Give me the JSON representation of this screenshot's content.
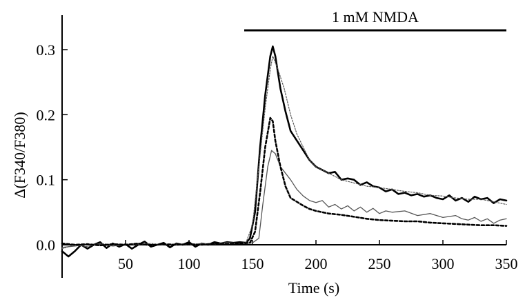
{
  "chart_data": {
    "type": "line",
    "title": "",
    "xlabel": "Time (s)",
    "ylabel": "Δ(F340/F380)",
    "xlim": [
      0,
      350
    ],
    "ylim": [
      -0.05,
      0.35
    ],
    "x_ticks": [
      50,
      100,
      150,
      200,
      250,
      300,
      350
    ],
    "x_tick_labels": [
      "50",
      "100",
      "150",
      "200",
      "250",
      "300",
      "350"
    ],
    "y_ticks": [
      0.0,
      0.1,
      0.2,
      0.3
    ],
    "y_tick_labels": [
      "0.0",
      "0.1",
      "0.2",
      "0.3"
    ],
    "grid": false,
    "legend": "none",
    "annotation": {
      "text": "1 mM NMDA",
      "x_start": 150,
      "x_end": 350
    },
    "series": [
      {
        "style": "thick-solid",
        "color": "#000000",
        "points": [
          [
            0,
            -0.01
          ],
          [
            5,
            -0.018
          ],
          [
            10,
            -0.01
          ],
          [
            15,
            0.0
          ],
          [
            20,
            -0.006
          ],
          [
            25,
            0.0
          ],
          [
            30,
            0.004
          ],
          [
            35,
            -0.005
          ],
          [
            40,
            0.002
          ],
          [
            45,
            -0.003
          ],
          [
            50,
            0.001
          ],
          [
            55,
            -0.006
          ],
          [
            60,
            0.0
          ],
          [
            65,
            0.005
          ],
          [
            70,
            -0.003
          ],
          [
            75,
            0.0
          ],
          [
            80,
            0.003
          ],
          [
            85,
            -0.004
          ],
          [
            90,
            0.002
          ],
          [
            95,
            0.0
          ],
          [
            100,
            0.004
          ],
          [
            105,
            -0.003
          ],
          [
            110,
            0.002
          ],
          [
            115,
            0.0
          ],
          [
            120,
            0.004
          ],
          [
            125,
            0.002
          ],
          [
            130,
            0.004
          ],
          [
            135,
            0.003
          ],
          [
            140,
            0.004
          ],
          [
            145,
            0.003
          ],
          [
            148,
            0.01
          ],
          [
            152,
            0.05
          ],
          [
            156,
            0.15
          ],
          [
            160,
            0.23
          ],
          [
            164,
            0.29
          ],
          [
            166,
            0.305
          ],
          [
            168,
            0.29
          ],
          [
            172,
            0.24
          ],
          [
            176,
            0.205
          ],
          [
            180,
            0.175
          ],
          [
            185,
            0.16
          ],
          [
            190,
            0.145
          ],
          [
            195,
            0.13
          ],
          [
            200,
            0.12
          ],
          [
            205,
            0.115
          ],
          [
            210,
            0.11
          ],
          [
            215,
            0.112
          ],
          [
            220,
            0.1
          ],
          [
            225,
            0.102
          ],
          [
            230,
            0.1
          ],
          [
            235,
            0.092
          ],
          [
            240,
            0.096
          ],
          [
            245,
            0.09
          ],
          [
            250,
            0.088
          ],
          [
            255,
            0.082
          ],
          [
            260,
            0.085
          ],
          [
            265,
            0.078
          ],
          [
            270,
            0.08
          ],
          [
            275,
            0.076
          ],
          [
            280,
            0.078
          ],
          [
            285,
            0.074
          ],
          [
            290,
            0.076
          ],
          [
            295,
            0.072
          ],
          [
            300,
            0.07
          ],
          [
            305,
            0.076
          ],
          [
            310,
            0.068
          ],
          [
            315,
            0.072
          ],
          [
            320,
            0.066
          ],
          [
            325,
            0.074
          ],
          [
            330,
            0.07
          ],
          [
            335,
            0.072
          ],
          [
            340,
            0.064
          ],
          [
            345,
            0.07
          ],
          [
            350,
            0.068
          ]
        ]
      },
      {
        "style": "thin-dotted",
        "color": "#555555",
        "points": [
          [
            0,
            -0.006
          ],
          [
            10,
            0.0
          ],
          [
            20,
            -0.003
          ],
          [
            30,
            0.002
          ],
          [
            40,
            0.0
          ],
          [
            50,
            0.001
          ],
          [
            60,
            0.0
          ],
          [
            70,
            0.002
          ],
          [
            80,
            0.0
          ],
          [
            90,
            0.001
          ],
          [
            100,
            0.0
          ],
          [
            110,
            0.002
          ],
          [
            120,
            0.001
          ],
          [
            130,
            0.003
          ],
          [
            140,
            0.002
          ],
          [
            145,
            0.004
          ],
          [
            150,
            0.03
          ],
          [
            155,
            0.12
          ],
          [
            160,
            0.21
          ],
          [
            164,
            0.27
          ],
          [
            166,
            0.29
          ],
          [
            170,
            0.27
          ],
          [
            175,
            0.24
          ],
          [
            180,
            0.2
          ],
          [
            185,
            0.17
          ],
          [
            190,
            0.15
          ],
          [
            195,
            0.13
          ],
          [
            200,
            0.12
          ],
          [
            210,
            0.11
          ],
          [
            220,
            0.1
          ],
          [
            230,
            0.095
          ],
          [
            240,
            0.09
          ],
          [
            250,
            0.088
          ],
          [
            260,
            0.085
          ],
          [
            270,
            0.082
          ],
          [
            280,
            0.08
          ],
          [
            290,
            0.076
          ],
          [
            300,
            0.075
          ],
          [
            310,
            0.072
          ],
          [
            320,
            0.07
          ],
          [
            330,
            0.07
          ],
          [
            340,
            0.066
          ],
          [
            350,
            0.062
          ]
        ]
      },
      {
        "style": "thin-solid",
        "color": "#555555",
        "points": [
          [
            0,
            -0.004
          ],
          [
            10,
            -0.002
          ],
          [
            20,
            0.0
          ],
          [
            30,
            0.001
          ],
          [
            40,
            -0.002
          ],
          [
            50,
            0.0
          ],
          [
            60,
            0.002
          ],
          [
            70,
            -0.001
          ],
          [
            80,
            0.0
          ],
          [
            90,
            0.001
          ],
          [
            100,
            0.0
          ],
          [
            110,
            0.001
          ],
          [
            120,
            0.002
          ],
          [
            130,
            0.003
          ],
          [
            140,
            0.002
          ],
          [
            150,
            0.003
          ],
          [
            155,
            0.01
          ],
          [
            158,
            0.06
          ],
          [
            162,
            0.12
          ],
          [
            165,
            0.145
          ],
          [
            168,
            0.14
          ],
          [
            172,
            0.12
          ],
          [
            176,
            0.11
          ],
          [
            180,
            0.1
          ],
          [
            185,
            0.085
          ],
          [
            190,
            0.075
          ],
          [
            195,
            0.068
          ],
          [
            200,
            0.065
          ],
          [
            205,
            0.068
          ],
          [
            210,
            0.058
          ],
          [
            215,
            0.062
          ],
          [
            220,
            0.055
          ],
          [
            225,
            0.06
          ],
          [
            230,
            0.052
          ],
          [
            235,
            0.058
          ],
          [
            240,
            0.05
          ],
          [
            245,
            0.056
          ],
          [
            250,
            0.048
          ],
          [
            255,
            0.052
          ],
          [
            260,
            0.05
          ],
          [
            270,
            0.052
          ],
          [
            280,
            0.045
          ],
          [
            290,
            0.048
          ],
          [
            300,
            0.042
          ],
          [
            310,
            0.045
          ],
          [
            315,
            0.04
          ],
          [
            320,
            0.038
          ],
          [
            325,
            0.042
          ],
          [
            330,
            0.036
          ],
          [
            335,
            0.04
          ],
          [
            340,
            0.033
          ],
          [
            345,
            0.038
          ],
          [
            350,
            0.04
          ]
        ]
      },
      {
        "style": "thick-dashed",
        "color": "#000000",
        "points": [
          [
            0,
            0.002
          ],
          [
            10,
            0.0
          ],
          [
            20,
            0.001
          ],
          [
            30,
            -0.001
          ],
          [
            40,
            0.001
          ],
          [
            50,
            0.0
          ],
          [
            60,
            0.002
          ],
          [
            70,
            -0.001
          ],
          [
            80,
            0.001
          ],
          [
            90,
            0.0
          ],
          [
            100,
            0.001
          ],
          [
            110,
            0.0
          ],
          [
            120,
            0.002
          ],
          [
            130,
            0.001
          ],
          [
            140,
            0.002
          ],
          [
            148,
            0.003
          ],
          [
            152,
            0.02
          ],
          [
            156,
            0.08
          ],
          [
            160,
            0.15
          ],
          [
            164,
            0.195
          ],
          [
            166,
            0.19
          ],
          [
            168,
            0.16
          ],
          [
            172,
            0.12
          ],
          [
            176,
            0.09
          ],
          [
            180,
            0.072
          ],
          [
            185,
            0.066
          ],
          [
            190,
            0.06
          ],
          [
            195,
            0.055
          ],
          [
            200,
            0.052
          ],
          [
            210,
            0.048
          ],
          [
            220,
            0.046
          ],
          [
            230,
            0.043
          ],
          [
            240,
            0.04
          ],
          [
            250,
            0.038
          ],
          [
            260,
            0.037
          ],
          [
            270,
            0.036
          ],
          [
            280,
            0.036
          ],
          [
            290,
            0.034
          ],
          [
            300,
            0.033
          ],
          [
            310,
            0.032
          ],
          [
            320,
            0.031
          ],
          [
            330,
            0.03
          ],
          [
            340,
            0.03
          ],
          [
            350,
            0.029
          ]
        ]
      }
    ]
  }
}
